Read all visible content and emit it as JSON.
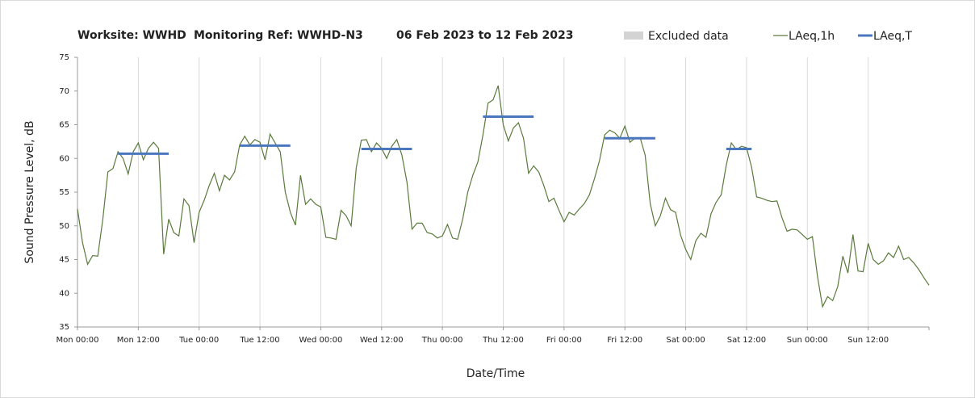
{
  "chart_data": {
    "type": "line",
    "title": [
      "Worksite: WWHD",
      "Monitoring Ref: WWHD-N3",
      "06 Feb 2023 to 12 Feb 2023"
    ],
    "x_label": "Date/Time",
    "y_label": "Sound Pressure Level, dB",
    "xlim": [
      0,
      168
    ],
    "xticks": [
      {
        "value": 0,
        "label": "Mon 00:00"
      },
      {
        "value": 12,
        "label": "Mon 12:00"
      },
      {
        "value": 24,
        "label": "Tue 00:00"
      },
      {
        "value": 36,
        "label": "Tue 12:00"
      },
      {
        "value": 48,
        "label": "Wed 00:00"
      },
      {
        "value": 60,
        "label": "Wed 12:00"
      },
      {
        "value": 72,
        "label": "Thu 00:00"
      },
      {
        "value": 84,
        "label": "Thu 12:00"
      },
      {
        "value": 96,
        "label": "Fri 00:00"
      },
      {
        "value": 108,
        "label": "Fri 12:00"
      },
      {
        "value": 120,
        "label": "Sat 00:00"
      },
      {
        "value": 132,
        "label": "Sat 12:00"
      },
      {
        "value": 144,
        "label": "Sun 00:00"
      },
      {
        "value": 156,
        "label": "Sun 12:00"
      }
    ],
    "ylim": [
      35,
      75
    ],
    "yticks": [
      35,
      40,
      45,
      50,
      55,
      60,
      65,
      70,
      75
    ],
    "grid": "x",
    "series": [
      {
        "name": "Excluded data",
        "color": "#d3d3d3",
        "values": []
      },
      {
        "name": "LAeq,1h",
        "color": "#5a7a3c",
        "x": [
          0,
          1,
          2,
          3,
          4,
          5,
          6,
          7,
          8,
          9,
          10,
          11,
          12,
          13,
          14,
          15,
          16,
          17,
          18,
          19,
          20,
          21,
          22,
          23,
          24,
          25,
          26,
          27,
          28,
          29,
          30,
          31,
          32,
          33,
          34,
          35,
          36,
          37,
          38,
          39,
          40,
          41,
          42,
          43,
          44,
          45,
          46,
          47,
          48,
          49,
          50,
          51,
          52,
          53,
          54,
          55,
          56,
          57,
          58,
          59,
          60,
          61,
          62,
          63,
          64,
          65,
          66,
          67,
          68,
          69,
          70,
          71,
          72,
          73,
          74,
          75,
          76,
          77,
          78,
          79,
          80,
          81,
          82,
          83,
          84,
          85,
          86,
          87,
          88,
          89,
          90,
          91,
          92,
          93,
          94,
          95,
          96,
          97,
          98,
          99,
          100,
          101,
          102,
          103,
          104,
          105,
          106,
          107,
          108,
          109,
          110,
          111,
          112,
          113,
          114,
          115,
          116,
          117,
          118,
          119,
          120,
          121,
          122,
          123,
          124,
          125,
          126,
          127,
          128,
          129,
          130,
          131,
          132,
          133,
          134,
          135,
          136,
          137,
          138,
          139,
          140,
          141,
          142,
          143,
          144,
          145,
          146,
          147,
          148,
          149,
          150,
          151,
          152,
          153,
          154,
          155,
          156,
          157,
          158,
          159,
          160,
          161,
          162,
          163,
          164,
          165,
          166,
          167,
          168
        ],
        "values": [
          52.5,
          47.5,
          44.3,
          45.6,
          45.5,
          51,
          58,
          58.5,
          61,
          60,
          57.7,
          61,
          62.3,
          59.8,
          61.5,
          62.4,
          61.5,
          45.8,
          51,
          49,
          48.5,
          54,
          53,
          47.5,
          52,
          53.8,
          56,
          57.8,
          55.2,
          57.5,
          56.8,
          58,
          62,
          63.3,
          62,
          62.8,
          62.4,
          59.8,
          63.6,
          62.3,
          61,
          55,
          52,
          50.1,
          57.5,
          53.2,
          54,
          53.2,
          52.8,
          48.3,
          48.2,
          48,
          52.3,
          51.5,
          50,
          58.6,
          62.7,
          62.8,
          61,
          62.3,
          61.5,
          60,
          61.8,
          62.8,
          60.5,
          56.5,
          49.5,
          50.4,
          50.4,
          49,
          48.8,
          48.2,
          48.5,
          50.2,
          48.2,
          48,
          51,
          55,
          57.5,
          59.5,
          63.5,
          68.2,
          68.7,
          70.8,
          65,
          62.6,
          64.5,
          65.3,
          63,
          57.8,
          58.9,
          58,
          56,
          53.6,
          54.1,
          52.3,
          50.6,
          52,
          51.6,
          52.5,
          53.3,
          54.6,
          57,
          59.7,
          63.5,
          64.2,
          63.8,
          63,
          64.8,
          62.4,
          63,
          63.1,
          60.5,
          53.3,
          50,
          51.5,
          54.1,
          52.4,
          52,
          48.6,
          46.5,
          45,
          47.8,
          48.9,
          48.3,
          51.8,
          53.5,
          54.6,
          59,
          62.3,
          61.3,
          61.8,
          61.6,
          58.7,
          54.3,
          54.1,
          53.8,
          53.6,
          53.7,
          51.2,
          49.2,
          49.5,
          49.4,
          48.7,
          48,
          48.4,
          42.5,
          38,
          39.5,
          38.9,
          41,
          45.5,
          43,
          48.7,
          43.3,
          43.2,
          47.4,
          45,
          44.3,
          44.8,
          46,
          45.3,
          47,
          45,
          45.3,
          44.5,
          43.5,
          42.3,
          41.2
        ]
      },
      {
        "name": "LAeq,T",
        "color": "#4a76be",
        "segments": [
          {
            "x": [
              8,
              18
            ],
            "value": 60.7
          },
          {
            "x": [
              32,
              42
            ],
            "value": 61.9
          },
          {
            "x": [
              56,
              66
            ],
            "value": 61.4
          },
          {
            "x": [
              80,
              90
            ],
            "value": 66.2
          },
          {
            "x": [
              104,
              114
            ],
            "value": 63
          },
          {
            "x": [
              128,
              133
            ],
            "value": 61.4
          }
        ]
      }
    ]
  }
}
